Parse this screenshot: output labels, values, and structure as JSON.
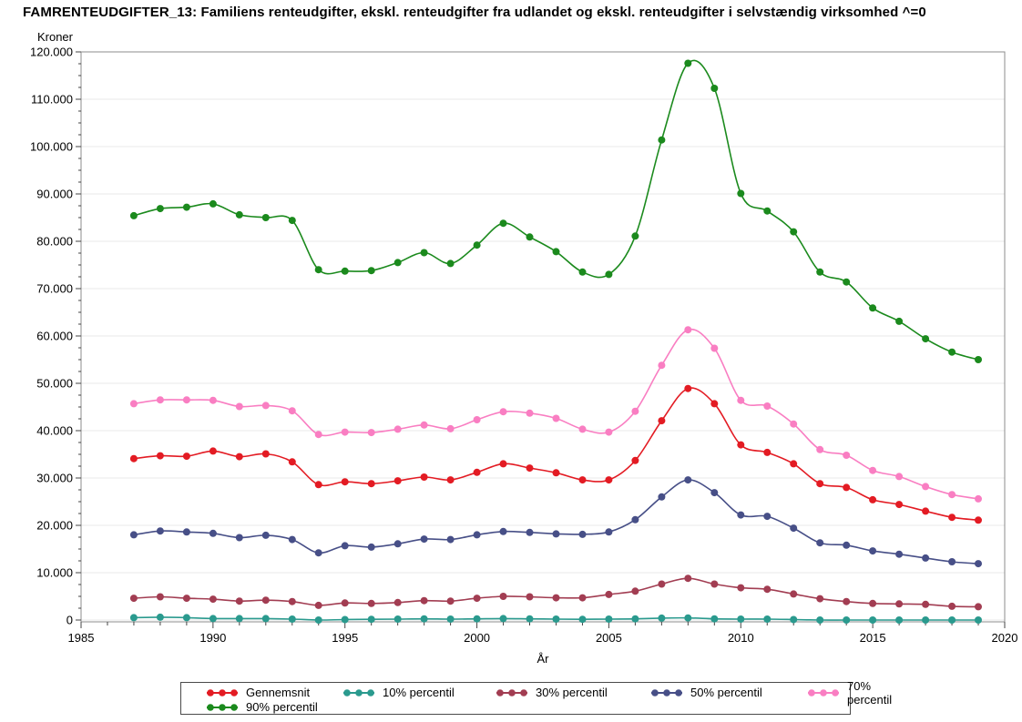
{
  "title": "FAMRENTEUDGIFTER_13: Familiens renteudgifter, ekskl. renteudgifter fra udlandet og ekskl. renteudgifter i selvstændig virksomhed ^=0",
  "colors": {
    "gennemsnit": "#e31b23",
    "p10": "#2a9a8e",
    "p30": "#a23d52",
    "p50": "#474f87",
    "p70": "#f97ec2",
    "p90": "#1b8a1d",
    "gridline": "#e9e9e9",
    "frame": "#8c8c8c",
    "tick": "#444444",
    "text": "#000000"
  },
  "chart_data": {
    "type": "line",
    "marker": "circle",
    "grid": "horizontal-major",
    "legend_position": "bottom",
    "x_axis": {
      "label": "År",
      "min": 1985,
      "max": 2020,
      "minor_tick_interval": 1,
      "ticks": [
        {
          "value": 1985,
          "label": "1985"
        },
        {
          "value": 1990,
          "label": "1990"
        },
        {
          "value": 1995,
          "label": "1995"
        },
        {
          "value": 2000,
          "label": "2000"
        },
        {
          "value": 2005,
          "label": "2005"
        },
        {
          "value": 2010,
          "label": "2010"
        },
        {
          "value": 2015,
          "label": "2015"
        },
        {
          "value": 2020,
          "label": "2020"
        }
      ]
    },
    "y_axis": {
      "label": "Kroner",
      "min": 0,
      "max": 120000,
      "minor_tick_interval": 2500,
      "ticks": [
        {
          "value": 0,
          "label": "0"
        },
        {
          "value": 10000,
          "label": "10.000"
        },
        {
          "value": 20000,
          "label": "20.000"
        },
        {
          "value": 30000,
          "label": "30.000"
        },
        {
          "value": 40000,
          "label": "40.000"
        },
        {
          "value": 50000,
          "label": "50.000"
        },
        {
          "value": 60000,
          "label": "60.000"
        },
        {
          "value": 70000,
          "label": "70.000"
        },
        {
          "value": 80000,
          "label": "80.000"
        },
        {
          "value": 90000,
          "label": "90.000"
        },
        {
          "value": 100000,
          "label": "100.000"
        },
        {
          "value": 110000,
          "label": "110.000"
        },
        {
          "value": 120000,
          "label": "120.000"
        }
      ]
    },
    "years": [
      1987,
      1988,
      1989,
      1990,
      1991,
      1992,
      1993,
      1994,
      1995,
      1996,
      1997,
      1998,
      1999,
      2000,
      2001,
      2002,
      2003,
      2004,
      2005,
      2006,
      2007,
      2008,
      2009,
      2010,
      2011,
      2012,
      2013,
      2014,
      2015,
      2016,
      2017,
      2018,
      2019
    ],
    "series": [
      {
        "name": "Gennemsnit",
        "color": "#e31b23",
        "values": [
          34100,
          34700,
          34600,
          35700,
          34500,
          35100,
          33400,
          28600,
          29200,
          28800,
          29400,
          30200,
          29600,
          31200,
          33000,
          32100,
          31100,
          29600,
          29600,
          33700,
          42100,
          48900,
          45700,
          37000,
          35400,
          33000,
          28800,
          28000,
          25400,
          24400,
          23000,
          21700,
          21100
        ]
      },
      {
        "name": "10% percentil",
        "color": "#2a9a8e",
        "values": [
          500,
          600,
          500,
          300,
          300,
          300,
          200,
          0,
          100,
          150,
          200,
          250,
          200,
          250,
          300,
          250,
          200,
          150,
          200,
          250,
          400,
          450,
          250,
          200,
          200,
          100,
          0,
          0,
          0,
          0,
          0,
          0,
          0
        ]
      },
      {
        "name": "30% percentil",
        "color": "#a23d52",
        "values": [
          4600,
          4900,
          4600,
          4400,
          4000,
          4200,
          3900,
          3100,
          3600,
          3500,
          3700,
          4100,
          4000,
          4600,
          5000,
          4900,
          4700,
          4700,
          5400,
          6100,
          7600,
          8800,
          7600,
          6800,
          6500,
          5500,
          4500,
          3900,
          3500,
          3400,
          3300,
          2900,
          2800
        ]
      },
      {
        "name": "50% percentil",
        "color": "#474f87",
        "values": [
          18000,
          18800,
          18600,
          18300,
          17400,
          17900,
          17000,
          14200,
          15700,
          15400,
          16100,
          17100,
          17000,
          18000,
          18700,
          18500,
          18200,
          18100,
          18600,
          21200,
          26000,
          29600,
          26900,
          22200,
          21900,
          19400,
          16300,
          15800,
          14600,
          13900,
          13100,
          12300,
          11900
        ]
      },
      {
        "name": "70% percentil",
        "color": "#f97ec2",
        "values": [
          45700,
          46500,
          46500,
          46400,
          45100,
          45300,
          44200,
          39200,
          39700,
          39600,
          40300,
          41200,
          40400,
          42300,
          44000,
          43700,
          42600,
          40300,
          39700,
          44100,
          53800,
          61300,
          57400,
          46400,
          45200,
          41400,
          36000,
          34800,
          31600,
          30300,
          28200,
          26500,
          25600
        ]
      },
      {
        "name": "90% percentil",
        "color": "#1b8a1d",
        "values": [
          85400,
          86900,
          87200,
          87900,
          85600,
          85000,
          84400,
          74000,
          73700,
          73800,
          75500,
          77600,
          75300,
          79200,
          83800,
          80900,
          77800,
          73500,
          73000,
          81100,
          101400,
          117600,
          112300,
          90100,
          86400,
          82000,
          73500,
          71400,
          65900,
          63100,
          59400,
          56600,
          55000
        ]
      }
    ]
  }
}
